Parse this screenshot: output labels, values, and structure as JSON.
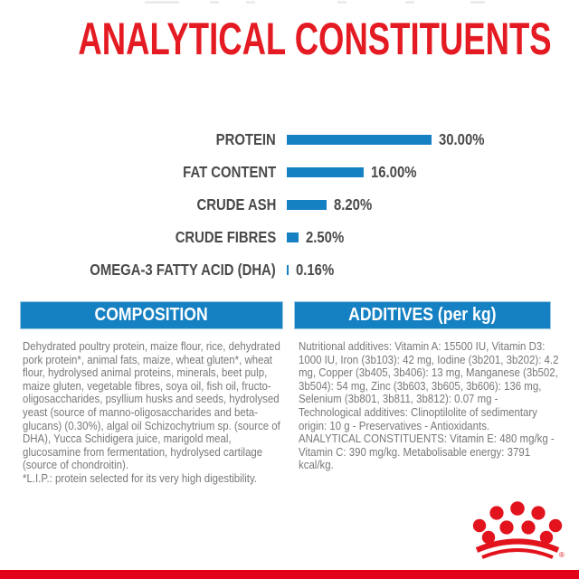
{
  "page": {
    "title": "ANALYTICAL CONSTITUENTS"
  },
  "chart_data": {
    "type": "bar",
    "orientation": "horizontal",
    "title": "ANALYTICAL CONSTITUENTS",
    "categories": [
      "PROTEIN",
      "FAT CONTENT",
      "CRUDE ASH",
      "CRUDE FIBRES",
      "OMEGA-3 FATTY ACID (DHA)"
    ],
    "values": [
      30.0,
      16.0,
      8.2,
      2.5,
      0.16
    ],
    "value_labels": [
      "30.00%",
      "16.00%",
      "8.20%",
      "2.50%",
      "0.16%"
    ],
    "unit": "%",
    "xlim": [
      0,
      30
    ],
    "grid": false,
    "legend": false,
    "bar_color": "#1580c2",
    "label_color": "#4a4a4c"
  },
  "composition": {
    "header": "COMPOSITION",
    "body": "Dehydrated poultry protein, maize flour, rice, dehydrated pork protein*, animal fats, maize, wheat gluten*, wheat flour, hydrolysed animal proteins, minerals, beet pulp, maize gluten, vegetable fibres, soya oil, fish oil, fructo-oligosaccharides, psyllium husks and seeds, hydrolysed yeast (source of manno-oligosaccharides and beta-glucans) (0.30%), algal oil Schizochytrium sp. (source of DHA), Yucca Schidigera juice, marigold meal, glucosamine from fermentation, hydrolysed cartilage (source of chondroitin).",
    "footnote": "*L.I.P.: protein selected for its very high digestibility."
  },
  "additives": {
    "header": "ADDITIVES (per kg)",
    "body": "Nutritional additives: Vitamin A: 15500 IU, Vitamin D3: 1000 IU, Iron (3b103): 42 mg, Iodine (3b201, 3b202): 4.2 mg, Copper (3b405, 3b406): 13 mg, Manganese (3b502, 3b504): 54 mg, Zinc (3b603, 3b605, 3b606): 136 mg, Selenium (3b801, 3b811, 3b812): 0.07 mg - Technological additives: Clinoptilolite of sedimentary origin: 10 g - Preservatives - Antioxidants.",
    "analytical": "ANALYTICAL CONSTITUENTS: Vitamin E: 480 mg/kg - Vitamin C: 390 mg/kg. Metabolisable energy: 3791 kcal/kg."
  },
  "brand": {
    "logo": "royal-canin-crown",
    "registered_mark": "®"
  },
  "colors": {
    "brand_red": "#e2001a",
    "title_red": "#e41b23",
    "chart_blue": "#1580c2",
    "header_blue": "#1580c2",
    "label_gray": "#4a4a4c",
    "body_gray": "#77787a"
  }
}
